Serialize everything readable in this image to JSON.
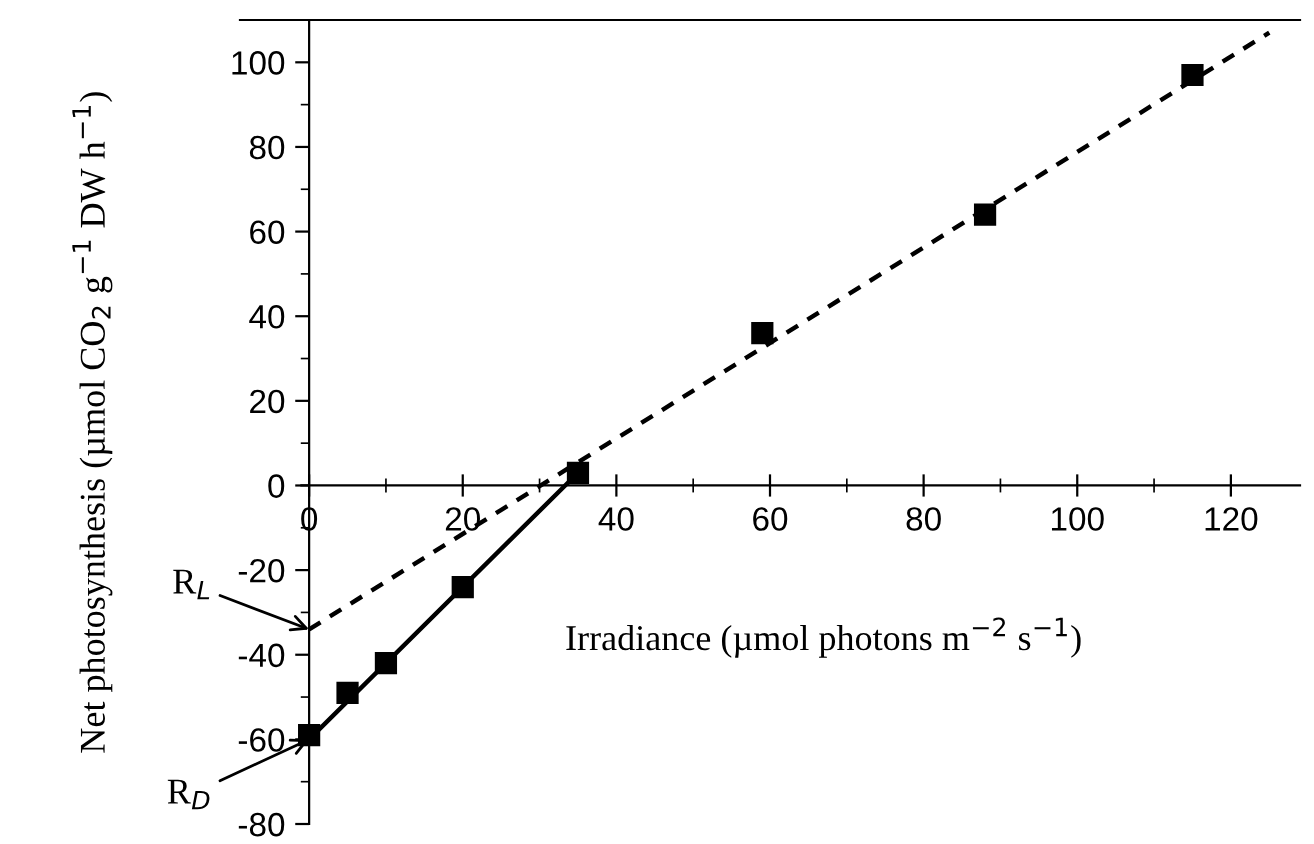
{
  "chart_data": {
    "type": "scatter",
    "xlabel": "Irradiance (µmol photons m$^{−2}$ s$^{−1}$)",
    "ylabel": "Net photosynthesis (µmol CO$_{2}$ g$^{−1}$ DW h$^{−1}$)",
    "series": [
      {
        "color": "#000000",
        "marker": "square",
        "x": [
          0,
          5,
          10,
          20,
          35,
          59,
          88,
          115
        ],
        "values": [
          -59,
          -49,
          -42,
          -24,
          3,
          36,
          64,
          97
        ]
      },
      {
        "type": "line",
        "color": "#000000",
        "line_style": "solid",
        "marker": "none",
        "x": [
          0,
          35
        ],
        "values": [
          -60,
          3
        ]
      },
      {
        "type": "line",
        "color": "#000000",
        "line_style": "dashed",
        "marker": "none",
        "x": [
          0,
          125
        ],
        "values": [
          -34,
          107
        ]
      }
    ],
    "annotations": [
      {
        "text": "R$_{L}$",
        "x": 0,
        "y": -34
      },
      {
        "text": "R$_{D}$",
        "x": 0,
        "y": -60
      }
    ],
    "xlim": [
      -9,
      129
    ],
    "ylim": [
      -80,
      110
    ],
    "xticks": [
      0,
      20,
      40,
      60,
      80,
      100,
      120
    ],
    "yticks": [
      -80,
      -60,
      -40,
      -20,
      0,
      20,
      40,
      60,
      80,
      100
    ],
    "grid": false,
    "legend": false
  }
}
